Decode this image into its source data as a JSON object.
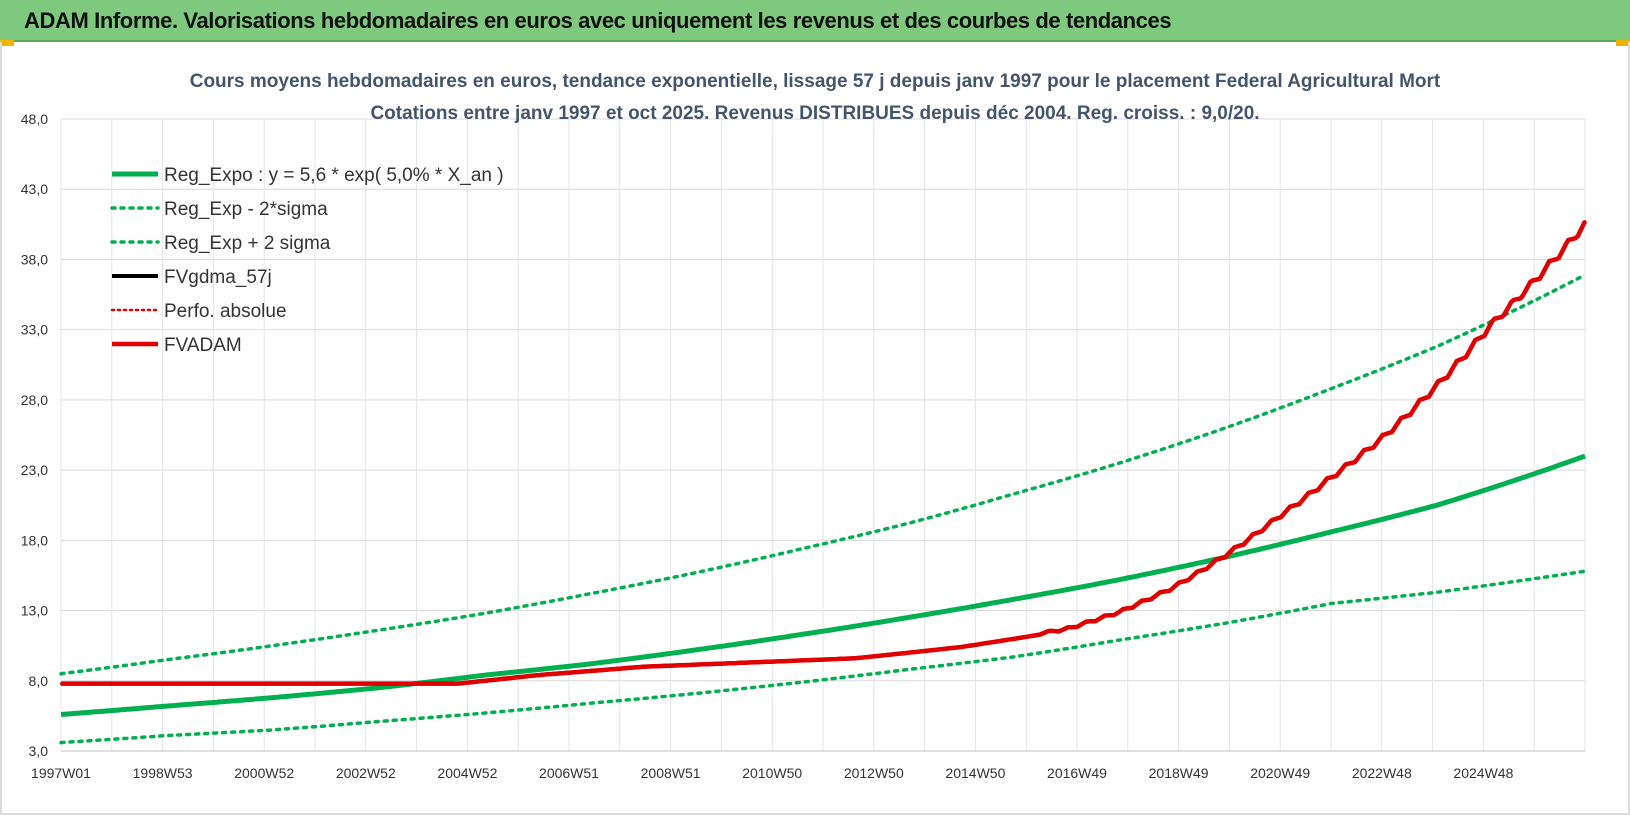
{
  "header": {
    "title": "ADAM Informe. Valorisations hebdomadaires en euros avec uniquement les revenus et des courbes de tendances"
  },
  "colors": {
    "header_bg": "#7fc97f",
    "green": "#00b050",
    "red": "#e00000",
    "black": "#000000",
    "title": "#44546a"
  },
  "chart_data": {
    "type": "line",
    "title": "Cours moyens hebdomadaires en euros, tendance exponentielle, lissage 57 j depuis janv 1997 pour le placement Federal Agricultural Mort",
    "subtitle": "Cotations entre janv 1997 et oct 2025. Revenus DISTRIBUES depuis déc 2004. Reg. croiss. : 9,0/20.",
    "xlabel": "",
    "ylabel": "",
    "x_tick_labels": [
      "1997W01",
      "1998W53",
      "2000W52",
      "2002W52",
      "2004W52",
      "2006W51",
      "2008W51",
      "2010W50",
      "2012W50",
      "2014W50",
      "2016W49",
      "2018W49",
      "2020W49",
      "2022W48",
      "2024W48"
    ],
    "y_tick_labels": [
      "3,0",
      "8,0",
      "13,0",
      "18,0",
      "23,0",
      "28,0",
      "33,0",
      "38,0",
      "43,0",
      "48,0"
    ],
    "xlim": [
      1997.0,
      2025.8
    ],
    "ylim": [
      3.0,
      48.0
    ],
    "legend_position": "top-left",
    "series": [
      {
        "name": "Reg_Expo : y = 5,6 * exp( 5,0% *  X_an )",
        "style": "solid-green",
        "x": [
          1997,
          1999,
          2001,
          2003,
          2005,
          2007,
          2009,
          2011,
          2013,
          2015,
          2017,
          2019,
          2021,
          2023,
          2025.8
        ],
        "y": [
          5.6,
          6.2,
          6.8,
          7.5,
          8.4,
          9.2,
          10.2,
          11.3,
          12.5,
          13.8,
          15.2,
          16.8,
          18.6,
          20.5,
          24.0
        ]
      },
      {
        "name": "Reg_Exp - 2*sigma",
        "style": "dotted-green",
        "x": [
          1997,
          1999,
          2001,
          2003,
          2005,
          2007,
          2009,
          2011,
          2013,
          2015,
          2017,
          2019,
          2021,
          2023,
          2025.8
        ],
        "y": [
          3.6,
          4.1,
          4.5,
          5.1,
          5.7,
          6.4,
          7.1,
          7.9,
          8.8,
          9.7,
          10.9,
          12.1,
          13.5,
          14.3,
          15.8
        ]
      },
      {
        "name": "Reg_Exp + 2 sigma",
        "style": "dotted-green",
        "x": [
          1997,
          1999,
          2001,
          2003,
          2005,
          2007,
          2009,
          2011,
          2013,
          2015,
          2017,
          2019,
          2021,
          2023,
          2025.8
        ],
        "y": [
          8.5,
          9.5,
          10.5,
          11.6,
          12.8,
          14.2,
          15.7,
          17.4,
          19.2,
          21.3,
          23.5,
          26.0,
          28.8,
          31.8,
          36.9
        ]
      },
      {
        "name": "FVgdma_57j",
        "style": "solid-black",
        "x": [
          1997,
          2004.5,
          2006,
          2008,
          2010,
          2012,
          2014,
          2016,
          2017,
          2018,
          2019,
          2020,
          2021,
          2022,
          2023,
          2024,
          2025.8
        ],
        "y": [
          7.8,
          7.8,
          8.4,
          9.0,
          9.3,
          9.6,
          10.4,
          11.6,
          12.8,
          14.5,
          16.8,
          19.5,
          22.3,
          25.2,
          28.8,
          33.0,
          40.2
        ]
      },
      {
        "name": "Perfo. absolue",
        "style": "dotted-red",
        "x": [
          1997,
          2004.5,
          2006,
          2008,
          2010,
          2012,
          2014,
          2016,
          2017,
          2018,
          2019,
          2020,
          2021,
          2022,
          2023,
          2024,
          2025.8
        ],
        "y": [
          7.8,
          7.8,
          8.4,
          9.0,
          9.3,
          9.6,
          10.4,
          11.6,
          12.8,
          14.5,
          16.8,
          19.5,
          22.3,
          25.2,
          28.8,
          33.0,
          40.2
        ]
      },
      {
        "name": "FVADAM",
        "style": "solid-red",
        "x": [
          1997,
          2004.5,
          2006,
          2008,
          2010,
          2012,
          2014,
          2016,
          2017,
          2018,
          2019,
          2020,
          2021,
          2022,
          2023,
          2024,
          2025.8
        ],
        "y": [
          7.8,
          7.8,
          8.4,
          9.0,
          9.3,
          9.6,
          10.4,
          11.6,
          12.8,
          14.5,
          16.8,
          19.5,
          22.3,
          25.2,
          28.8,
          33.0,
          40.2
        ]
      }
    ]
  }
}
